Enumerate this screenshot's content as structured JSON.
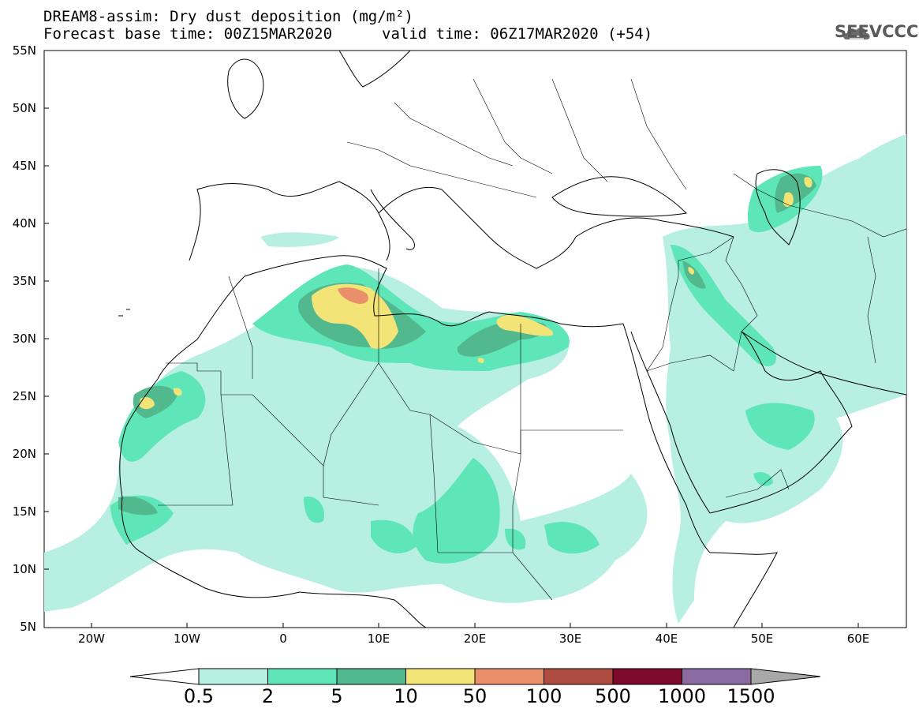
{
  "header": {
    "title": "DREAM8-assim: Dry dust deposition (mg/m²)",
    "base_time": "Forecast base time: 00Z15MAR2020",
    "valid_time": "valid time: 06Z17MAR2020 (+54)",
    "logo_text": "SEEVCCC"
  },
  "axes": {
    "lat_labels": [
      "55N",
      "50N",
      "45N",
      "40N",
      "35N",
      "30N",
      "25N",
      "20N",
      "15N",
      "10N",
      "5N"
    ],
    "lon_labels": [
      "20W",
      "10W",
      "0",
      "10E",
      "20E",
      "30E",
      "40E",
      "50E",
      "60E"
    ],
    "lat_range": [
      5,
      55
    ],
    "lon_range": [
      -25,
      65
    ]
  },
  "colorbar": {
    "labels": [
      "0.5",
      "2",
      "5",
      "10",
      "50",
      "100",
      "500",
      "1000",
      "1500"
    ],
    "colors": [
      "#b7efe3",
      "#5ee6b9",
      "#52b88e",
      "#f2e476",
      "#e9906b",
      "#ad4c3f",
      "#7d0a2c",
      "#8c6aa2"
    ],
    "under_color": "#ffffff",
    "over_color": "#a8a8a8"
  },
  "contour_colors": {
    "light": "#b7efe3",
    "mid": "#5ee6b9",
    "dark": "#52b88e",
    "yellow": "#f2e476",
    "orange": "#e9906b"
  }
}
